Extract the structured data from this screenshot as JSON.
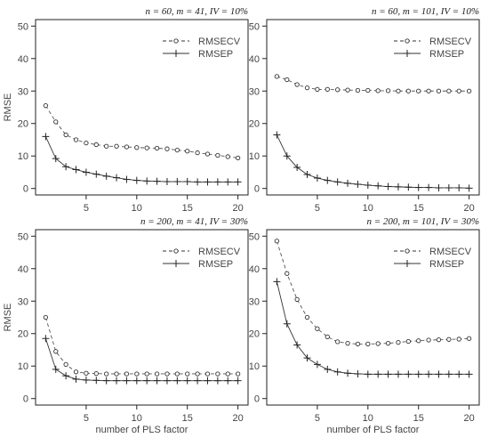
{
  "chart_data": [
    {
      "type": "line",
      "title": "n = 60, m = 41, IV = 10%",
      "xlabel": "",
      "ylabel": "RMSE",
      "xlim": [
        0,
        21
      ],
      "ylim": [
        -2,
        52
      ],
      "xticks": [
        5,
        10,
        15,
        20
      ],
      "yticks": [
        0,
        10,
        20,
        30,
        40,
        50
      ],
      "legend_position": "top-right",
      "grid": false,
      "x": [
        1,
        2,
        3,
        4,
        5,
        6,
        7,
        8,
        9,
        10,
        11,
        12,
        13,
        14,
        15,
        16,
        17,
        18,
        19,
        20
      ],
      "series": [
        {
          "name": "RMSECV",
          "marker": "circle",
          "dash": "dashed",
          "values": [
            25.5,
            20.5,
            16.5,
            15,
            14,
            13.5,
            13,
            13,
            12.8,
            12.6,
            12.5,
            12.4,
            12.2,
            11.8,
            11.5,
            11,
            10.6,
            10.2,
            9.8,
            9.4
          ]
        },
        {
          "name": "RMSEP",
          "marker": "plus",
          "dash": "solid",
          "values": [
            16,
            9.2,
            6.7,
            5.8,
            5,
            4.4,
            3.8,
            3.3,
            2.8,
            2.5,
            2.3,
            2.2,
            2.1,
            2.1,
            2.1,
            2,
            2,
            2,
            2,
            2
          ]
        }
      ]
    },
    {
      "type": "line",
      "title": "n = 60, m = 101, IV = 10%",
      "xlabel": "",
      "ylabel": "",
      "xlim": [
        0,
        21
      ],
      "ylim": [
        -2,
        52
      ],
      "xticks": [
        5,
        10,
        15,
        20
      ],
      "yticks": [
        0,
        10,
        20,
        30,
        40,
        50
      ],
      "legend_position": "top-right",
      "grid": false,
      "x": [
        1,
        2,
        3,
        4,
        5,
        6,
        7,
        8,
        9,
        10,
        11,
        12,
        13,
        14,
        15,
        16,
        17,
        18,
        19,
        20
      ],
      "series": [
        {
          "name": "RMSECV",
          "marker": "circle",
          "dash": "dashed",
          "values": [
            34.5,
            33.5,
            32,
            31,
            30.5,
            30.5,
            30.4,
            30.3,
            30.2,
            30.2,
            30.1,
            30.1,
            30,
            30,
            30,
            30,
            30,
            30,
            30,
            30
          ]
        },
        {
          "name": "RMSEP",
          "marker": "plus",
          "dash": "solid",
          "values": [
            16.5,
            10,
            6.5,
            4.3,
            3.2,
            2.5,
            2,
            1.6,
            1.3,
            1,
            0.8,
            0.6,
            0.5,
            0.4,
            0.3,
            0.3,
            0.2,
            0.2,
            0.2,
            0.1
          ]
        }
      ]
    },
    {
      "type": "line",
      "title": "n = 200, m = 41, IV = 30%",
      "xlabel": "number of PLS factor",
      "ylabel": "RMSE",
      "xlim": [
        0,
        21
      ],
      "ylim": [
        -2,
        52
      ],
      "xticks": [
        5,
        10,
        15,
        20
      ],
      "yticks": [
        0,
        10,
        20,
        30,
        40,
        50
      ],
      "legend_position": "top-right",
      "grid": false,
      "x": [
        1,
        2,
        3,
        4,
        5,
        6,
        7,
        8,
        9,
        10,
        11,
        12,
        13,
        14,
        15,
        16,
        17,
        18,
        19,
        20
      ],
      "series": [
        {
          "name": "RMSECV",
          "marker": "circle",
          "dash": "dashed",
          "values": [
            25,
            14.5,
            10.5,
            8.2,
            7.8,
            7.7,
            7.6,
            7.6,
            7.6,
            7.6,
            7.6,
            7.6,
            7.6,
            7.6,
            7.6,
            7.6,
            7.6,
            7.6,
            7.6,
            7.6
          ]
        },
        {
          "name": "RMSEP",
          "marker": "plus",
          "dash": "solid",
          "values": [
            18.5,
            9,
            7,
            6,
            5.7,
            5.6,
            5.5,
            5.5,
            5.5,
            5.5,
            5.5,
            5.5,
            5.5,
            5.5,
            5.5,
            5.5,
            5.5,
            5.5,
            5.5,
            5.5
          ]
        }
      ]
    },
    {
      "type": "line",
      "title": "n = 200, m = 101, IV = 30%",
      "xlabel": "number of PLS factor",
      "ylabel": "",
      "xlim": [
        0,
        21
      ],
      "ylim": [
        -2,
        52
      ],
      "xticks": [
        5,
        10,
        15,
        20
      ],
      "yticks": [
        0,
        10,
        20,
        30,
        40,
        50
      ],
      "legend_position": "top-right",
      "grid": false,
      "x": [
        1,
        2,
        3,
        4,
        5,
        6,
        7,
        8,
        9,
        10,
        11,
        12,
        13,
        14,
        15,
        16,
        17,
        18,
        19,
        20
      ],
      "series": [
        {
          "name": "RMSECV",
          "marker": "circle",
          "dash": "dashed",
          "values": [
            48.5,
            38.5,
            30.5,
            25,
            21.5,
            19,
            17.5,
            17,
            16.8,
            16.8,
            16.9,
            17,
            17.3,
            17.6,
            17.8,
            18,
            18.1,
            18.2,
            18.3,
            18.5
          ]
        },
        {
          "name": "RMSEP",
          "marker": "plus",
          "dash": "solid",
          "values": [
            36,
            23,
            16.5,
            12.5,
            10.5,
            9,
            8.2,
            7.8,
            7.6,
            7.5,
            7.5,
            7.5,
            7.5,
            7.5,
            7.5,
            7.5,
            7.5,
            7.5,
            7.5,
            7.5
          ]
        }
      ]
    }
  ]
}
